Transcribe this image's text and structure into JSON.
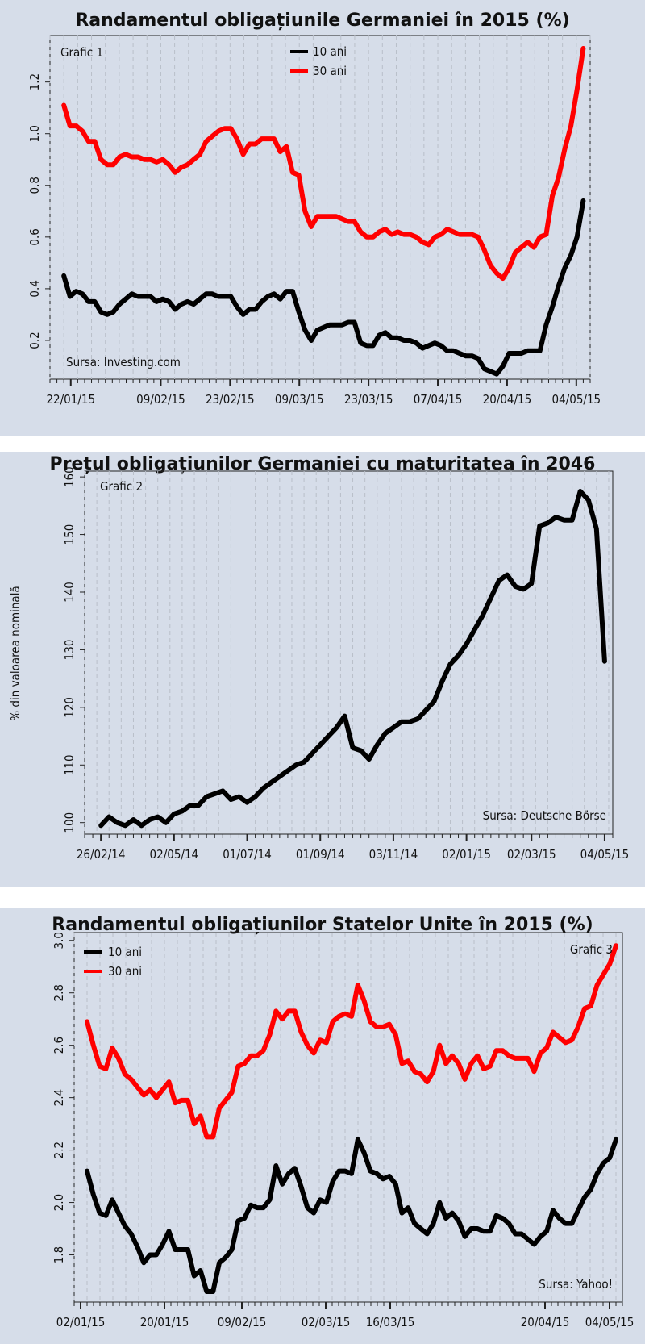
{
  "chart_data": [
    {
      "type": "line",
      "title": "Randamentul obligațiunile Germaniei în 2015 (%)",
      "panel_label": "Grafic 1",
      "source": "Sursa: Investing.com",
      "legend_position": "top-center",
      "grid": true,
      "ylim": [
        0.05,
        1.38
      ],
      "y_ticks": [
        0.2,
        0.4,
        0.6,
        0.8,
        1.0,
        1.2
      ],
      "y_tick_labels": [
        "0.2",
        "0.4",
        "0.6",
        "0.8",
        "1.0",
        "1.2"
      ],
      "x_tick_labels": [
        "22/01/15",
        "09/02/15",
        "23/02/15",
        "09/03/15",
        "23/03/15",
        "07/04/15",
        "20/04/15",
        "04/05/15"
      ],
      "x_tick_positions": [
        0,
        13,
        23,
        33,
        43,
        53,
        63,
        73
      ],
      "x_range": [
        -3,
        75
      ],
      "series": [
        {
          "name": "10 ani",
          "color": "#000000",
          "values": [
            0.45,
            0.37,
            0.39,
            0.38,
            0.35,
            0.35,
            0.31,
            0.3,
            0.31,
            0.34,
            0.36,
            0.38,
            0.37,
            0.37,
            0.37,
            0.35,
            0.36,
            0.35,
            0.32,
            0.34,
            0.35,
            0.34,
            0.36,
            0.38,
            0.38,
            0.37,
            0.37,
            0.37,
            0.33,
            0.3,
            0.32,
            0.32,
            0.35,
            0.37,
            0.38,
            0.36,
            0.39,
            0.39,
            0.31,
            0.24,
            0.2,
            0.24,
            0.25,
            0.26,
            0.26,
            0.26,
            0.27,
            0.27,
            0.19,
            0.18,
            0.18,
            0.22,
            0.23,
            0.21,
            0.21,
            0.2,
            0.2,
            0.19,
            0.17,
            0.18,
            0.19,
            0.18,
            0.16,
            0.16,
            0.15,
            0.14,
            0.14,
            0.13,
            0.09,
            0.08,
            0.07,
            0.1,
            0.15,
            0.15,
            0.15,
            0.16,
            0.16,
            0.16,
            0.26,
            0.33,
            0.41,
            0.48,
            0.53,
            0.6,
            0.74
          ]
        },
        {
          "name": "30 ani",
          "color": "#ff0000",
          "values": [
            1.11,
            1.03,
            1.03,
            1.01,
            0.97,
            0.97,
            0.9,
            0.88,
            0.88,
            0.91,
            0.92,
            0.91,
            0.91,
            0.9,
            0.9,
            0.89,
            0.9,
            0.88,
            0.85,
            0.87,
            0.88,
            0.9,
            0.92,
            0.97,
            0.99,
            1.01,
            1.02,
            1.02,
            0.98,
            0.92,
            0.96,
            0.96,
            0.98,
            0.98,
            0.98,
            0.93,
            0.95,
            0.85,
            0.84,
            0.7,
            0.64,
            0.68,
            0.68,
            0.68,
            0.68,
            0.67,
            0.66,
            0.66,
            0.62,
            0.6,
            0.6,
            0.62,
            0.63,
            0.61,
            0.62,
            0.61,
            0.61,
            0.6,
            0.58,
            0.57,
            0.6,
            0.61,
            0.63,
            0.62,
            0.61,
            0.61,
            0.61,
            0.6,
            0.55,
            0.49,
            0.46,
            0.44,
            0.48,
            0.54,
            0.56,
            0.58,
            0.56,
            0.6,
            0.61,
            0.76,
            0.83,
            0.94,
            1.03,
            1.17,
            1.33
          ]
        }
      ]
    },
    {
      "type": "line",
      "title": "Prețul obligațiunilor Germaniei cu maturitatea în 2046",
      "panel_label": "Grafic 2",
      "source": "Sursa: Deutsche Börse",
      "ylabel": "% din valoarea nominală",
      "grid": true,
      "ylim": [
        98,
        161
      ],
      "y_ticks": [
        100,
        110,
        120,
        130,
        140,
        150,
        160
      ],
      "y_tick_labels": [
        "100",
        "110",
        "120",
        "130",
        "140",
        "150",
        "160"
      ],
      "x_tick_labels": [
        "26/02/14",
        "02/05/14",
        "01/07/14",
        "01/09/14",
        "03/11/14",
        "02/01/15",
        "02/03/15",
        "04/05/15"
      ],
      "x_tick_positions": [
        0,
        9,
        18,
        27,
        36,
        45,
        53,
        62
      ],
      "x_range": [
        -2,
        63
      ],
      "series": [
        {
          "name": "",
          "color": "#000000",
          "values": [
            99.5,
            101,
            100,
            99.5,
            100.5,
            99.5,
            100.5,
            101,
            100,
            101.5,
            102,
            103,
            103,
            104.5,
            105,
            105.5,
            104,
            104.5,
            103.5,
            104.5,
            106,
            107,
            108,
            109,
            110,
            110.5,
            112,
            113.5,
            115,
            116.5,
            118.5,
            113,
            112.5,
            111,
            113.5,
            115.5,
            116.5,
            117.5,
            117.5,
            118,
            119.5,
            121,
            124.5,
            127.5,
            129,
            131,
            133.5,
            136,
            139,
            142,
            143,
            141,
            140.5,
            141.5,
            151.5,
            152,
            153,
            152.5,
            152.5,
            157.5,
            156,
            151,
            128
          ]
        }
      ]
    },
    {
      "type": "line",
      "title": "Randamentul obligațiunilor Statelor Unite în 2015 (%)",
      "panel_label": "Grafic 3",
      "source": "Sursa: Yahoo!",
      "legend_position": "top-left",
      "grid": true,
      "ylim": [
        1.62,
        3.03
      ],
      "y_ticks": [
        1.8,
        2.0,
        2.2,
        2.4,
        2.6,
        2.8,
        3.0
      ],
      "y_tick_labels": [
        "1.8",
        "2.0",
        "2.2",
        "2.4",
        "2.6",
        "2.8",
        "3.0"
      ],
      "x_tick_labels": [
        "02/01/15",
        "20/01/15",
        "09/02/15",
        "02/03/15",
        "16/03/15",
        "20/04/15",
        "04/05/15"
      ],
      "x_tick_positions": [
        0,
        13,
        25,
        38,
        48,
        72,
        82
      ],
      "x_range": [
        -1,
        84
      ],
      "series": [
        {
          "name": "10 ani",
          "color": "#000000",
          "values": [
            2.12,
            2.03,
            1.96,
            1.95,
            2.01,
            1.96,
            1.91,
            1.88,
            1.83,
            1.77,
            1.8,
            1.8,
            1.84,
            1.89,
            1.82,
            1.82,
            1.82,
            1.72,
            1.74,
            1.66,
            1.66,
            1.77,
            1.79,
            1.82,
            1.93,
            1.94,
            1.99,
            1.98,
            1.98,
            2.01,
            2.14,
            2.07,
            2.11,
            2.13,
            2.06,
            1.98,
            1.96,
            2.01,
            2.0,
            2.08,
            2.12,
            2.12,
            2.11,
            2.24,
            2.19,
            2.12,
            2.11,
            2.09,
            2.1,
            2.07,
            1.96,
            1.98,
            1.92,
            1.9,
            1.88,
            1.92,
            2.0,
            1.94,
            1.96,
            1.93,
            1.87,
            1.9,
            1.9,
            1.89,
            1.89,
            1.95,
            1.94,
            1.92,
            1.88,
            1.88,
            1.86,
            1.84,
            1.87,
            1.89,
            1.97,
            1.94,
            1.92,
            1.92,
            1.97,
            2.02,
            2.05,
            2.11,
            2.15,
            2.17,
            2.24
          ]
        },
        {
          "name": "30 ani",
          "color": "#ff0000",
          "values": [
            2.69,
            2.6,
            2.52,
            2.51,
            2.59,
            2.55,
            2.49,
            2.47,
            2.44,
            2.41,
            2.43,
            2.4,
            2.43,
            2.46,
            2.38,
            2.39,
            2.39,
            2.3,
            2.33,
            2.25,
            2.25,
            2.36,
            2.39,
            2.42,
            2.52,
            2.53,
            2.56,
            2.56,
            2.58,
            2.64,
            2.73,
            2.7,
            2.73,
            2.73,
            2.65,
            2.6,
            2.57,
            2.62,
            2.61,
            2.69,
            2.71,
            2.72,
            2.71,
            2.83,
            2.77,
            2.69,
            2.67,
            2.67,
            2.68,
            2.64,
            2.53,
            2.54,
            2.5,
            2.49,
            2.46,
            2.5,
            2.6,
            2.53,
            2.56,
            2.53,
            2.47,
            2.53,
            2.56,
            2.51,
            2.52,
            2.58,
            2.58,
            2.56,
            2.55,
            2.55,
            2.55,
            2.5,
            2.57,
            2.59,
            2.65,
            2.63,
            2.61,
            2.62,
            2.67,
            2.74,
            2.75,
            2.83,
            2.87,
            2.91,
            2.98
          ]
        }
      ]
    }
  ]
}
